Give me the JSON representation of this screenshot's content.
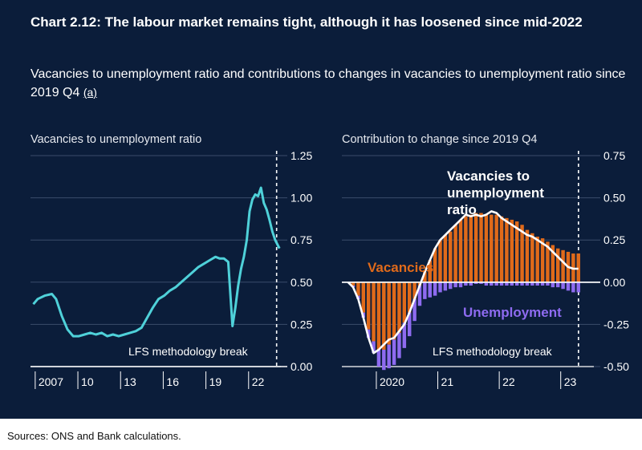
{
  "header": {
    "title": "Chart 2.12: The labour market remains tight, although it has loosened since mid-2022",
    "subtitle": "Vacancies to unemployment ratio and contributions to changes in vacancies to unemployment ratio since 2019 Q4",
    "footnote_marker": "(a)"
  },
  "footer": {
    "sources": "Sources: ONS and Bank calculations."
  },
  "colors": {
    "background": "#0b1d3a",
    "line": "#4fd1d9",
    "vacancies": "#e06a1a",
    "unemployment": "#8e6bf0",
    "ratio_line": "#ffffff"
  },
  "chart_data": [
    {
      "type": "line",
      "panel_label": "Vacancies to unemployment ratio",
      "x_tick_labels": [
        "2007",
        "10",
        "13",
        "16",
        "19",
        "22"
      ],
      "x_ticks": [
        2006.5,
        2009.5,
        2012.5,
        2015.5,
        2018.5,
        2021.5
      ],
      "xlim": [
        2006.0,
        2023.6
      ],
      "y_tick_labels": [
        "1.25",
        "1.00",
        "0.75",
        "0.50",
        "0.25",
        "0.00"
      ],
      "ylim": [
        0,
        1.25
      ],
      "y_ticks": [
        0,
        0.25,
        0.5,
        0.75,
        1.0,
        1.25
      ],
      "grid": true,
      "methodology_break_x": 2023.3,
      "annotation": "LFS methodology break",
      "series": [
        {
          "x": [
            2006.2,
            2006.5,
            2007.0,
            2007.5,
            2007.8,
            2008.2,
            2008.6,
            2009.0,
            2009.4,
            2009.8,
            2010.2,
            2010.6,
            2011.0,
            2011.4,
            2011.8,
            2012.2,
            2012.6,
            2013.0,
            2013.4,
            2013.8,
            2014.2,
            2014.6,
            2015.0,
            2015.4,
            2015.8,
            2016.2,
            2016.6,
            2017.0,
            2017.4,
            2017.8,
            2018.2,
            2018.6,
            2019.0,
            2019.3,
            2019.6,
            2019.9,
            2020.2,
            2020.4,
            2020.6,
            2020.8,
            2021.0,
            2021.2,
            2021.4,
            2021.6,
            2021.8,
            2022.0,
            2022.2,
            2022.4,
            2022.6,
            2022.8,
            2023.0,
            2023.2,
            2023.5
          ],
          "values": [
            0.37,
            0.4,
            0.42,
            0.43,
            0.4,
            0.3,
            0.22,
            0.18,
            0.18,
            0.19,
            0.2,
            0.19,
            0.2,
            0.18,
            0.19,
            0.18,
            0.19,
            0.2,
            0.21,
            0.23,
            0.29,
            0.35,
            0.4,
            0.42,
            0.45,
            0.47,
            0.5,
            0.53,
            0.56,
            0.59,
            0.61,
            0.63,
            0.65,
            0.64,
            0.64,
            0.62,
            0.24,
            0.35,
            0.48,
            0.58,
            0.65,
            0.75,
            0.92,
            0.99,
            1.02,
            1.01,
            1.06,
            0.97,
            0.93,
            0.87,
            0.8,
            0.75,
            0.7
          ]
        }
      ]
    },
    {
      "type": "bar",
      "panel_label": "Contribution to change since 2019 Q4",
      "x_tick_labels": [
        "2020",
        "21",
        "22",
        "23"
      ],
      "x_ticks": [
        2020.5,
        2021.5,
        2022.5,
        2023.5
      ],
      "xlim": [
        2019.9,
        2024.0
      ],
      "y_tick_labels": [
        "0.75",
        "0.50",
        "0.25",
        "0.00",
        "-0.25",
        "-0.50"
      ],
      "ylim": [
        -0.5,
        0.75
      ],
      "y_ticks": [
        -0.5,
        -0.25,
        0,
        0.25,
        0.5,
        0.75
      ],
      "grid": true,
      "methodology_break_x": 2023.75,
      "annotations": {
        "ratio": [
          "Vacancies to",
          "unemployment",
          "ratio"
        ],
        "vacancies": "Vacancies",
        "unemployment": "Unemployment",
        "break": "LFS methodology break"
      },
      "months_start": 2020.0,
      "month_step": 0.0833,
      "series": [
        {
          "name": "Vacancies",
          "values": [
            0.0,
            -0.02,
            -0.08,
            -0.18,
            -0.28,
            -0.35,
            -0.4,
            -0.4,
            -0.37,
            -0.34,
            -0.3,
            -0.24,
            -0.18,
            -0.1,
            -0.02,
            0.06,
            0.13,
            0.2,
            0.25,
            0.28,
            0.3,
            0.34,
            0.37,
            0.39,
            0.4,
            0.41,
            0.41,
            0.4,
            0.4,
            0.4,
            0.39,
            0.38,
            0.37,
            0.36,
            0.34,
            0.31,
            0.29,
            0.27,
            0.26,
            0.24,
            0.22,
            0.2,
            0.19,
            0.18,
            0.17,
            0.17
          ]
        },
        {
          "name": "Unemployment",
          "values": [
            0.0,
            -0.01,
            -0.02,
            -0.03,
            -0.05,
            -0.07,
            -0.1,
            -0.12,
            -0.14,
            -0.15,
            -0.15,
            -0.15,
            -0.14,
            -0.13,
            -0.12,
            -0.1,
            -0.09,
            -0.08,
            -0.06,
            -0.05,
            -0.04,
            -0.03,
            -0.03,
            -0.02,
            -0.02,
            -0.01,
            -0.01,
            -0.02,
            -0.02,
            -0.02,
            -0.02,
            -0.02,
            -0.02,
            -0.02,
            -0.02,
            -0.02,
            -0.02,
            -0.02,
            -0.02,
            -0.02,
            -0.03,
            -0.03,
            -0.04,
            -0.05,
            -0.06,
            -0.06
          ]
        },
        {
          "name": "Vacancies to unemployment ratio",
          "values": [
            0.0,
            -0.03,
            -0.1,
            -0.21,
            -0.33,
            -0.42,
            -0.4,
            -0.37,
            -0.34,
            -0.33,
            -0.29,
            -0.25,
            -0.18,
            -0.1,
            -0.02,
            0.06,
            0.13,
            0.2,
            0.25,
            0.28,
            0.31,
            0.34,
            0.37,
            0.4,
            0.39,
            0.4,
            0.39,
            0.4,
            0.42,
            0.41,
            0.38,
            0.36,
            0.34,
            0.32,
            0.3,
            0.28,
            0.27,
            0.25,
            0.23,
            0.21,
            0.18,
            0.15,
            0.12,
            0.09,
            0.08,
            0.08
          ]
        }
      ]
    }
  ]
}
